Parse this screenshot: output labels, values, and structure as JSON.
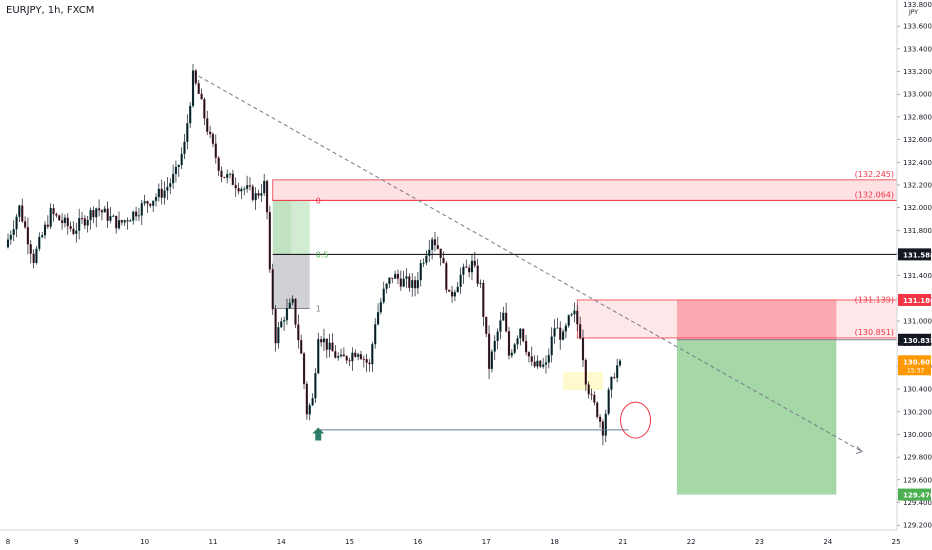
{
  "chart_data": {
    "type": "candlestick",
    "title": "EURJPY, 1h, FXCM",
    "currency": "JPY",
    "y_axis": {
      "min": 129.1,
      "max": 133.85,
      "ticks": [
        133.6,
        133.4,
        133.2,
        133.0,
        132.8,
        132.6,
        132.4,
        132.2,
        132.0,
        131.8,
        131.6,
        131.4,
        131.2,
        131.0,
        130.8,
        130.6,
        130.4,
        130.2,
        130.0,
        129.8,
        129.6,
        129.4,
        129.2
      ],
      "top_label": "133.800",
      "decimals": 3
    },
    "x_axis": {
      "labels": [
        {
          "label": "8",
          "idx": 0
        },
        {
          "label": "9",
          "idx": 24
        },
        {
          "label": "10",
          "idx": 48
        },
        {
          "label": "11",
          "idx": 72
        },
        {
          "label": "14",
          "idx": 96
        },
        {
          "label": "15",
          "idx": 120
        },
        {
          "label": "16",
          "idx": 144
        },
        {
          "label": "17",
          "idx": 168
        },
        {
          "label": "18",
          "idx": 192
        },
        {
          "label": "21",
          "idx": 216
        },
        {
          "label": "22",
          "idx": 240
        },
        {
          "label": "23",
          "idx": 264
        },
        {
          "label": "24",
          "idx": 288
        },
        {
          "label": "25",
          "idx": 312
        }
      ]
    },
    "price_path": [
      [
        0,
        131.65
      ],
      [
        5,
        132.0
      ],
      [
        10,
        131.55
      ],
      [
        16,
        131.95
      ],
      [
        24,
        131.8
      ],
      [
        32,
        132.0
      ],
      [
        40,
        131.85
      ],
      [
        50,
        132.05
      ],
      [
        56,
        132.15
      ],
      [
        60,
        132.3
      ],
      [
        63,
        132.55
      ],
      [
        66,
        133.15
      ],
      [
        68,
        133.0
      ],
      [
        72,
        132.6
      ],
      [
        76,
        132.3
      ],
      [
        82,
        132.2
      ],
      [
        88,
        132.1
      ],
      [
        91,
        132.2
      ],
      [
        92,
        131.95
      ],
      [
        93,
        131.4
      ],
      [
        95,
        130.85
      ],
      [
        98,
        131.05
      ],
      [
        101,
        131.15
      ],
      [
        104,
        130.7
      ],
      [
        106,
        130.2
      ],
      [
        108,
        130.3
      ],
      [
        110,
        130.9
      ],
      [
        114,
        130.75
      ],
      [
        118,
        130.65
      ],
      [
        124,
        130.75
      ],
      [
        128,
        130.6
      ],
      [
        130,
        131.0
      ],
      [
        133,
        131.25
      ],
      [
        136,
        131.4
      ],
      [
        140,
        131.35
      ],
      [
        144,
        131.3
      ],
      [
        146,
        131.5
      ],
      [
        150,
        131.75
      ],
      [
        153,
        131.6
      ],
      [
        156,
        131.2
      ],
      [
        160,
        131.4
      ],
      [
        164,
        131.5
      ],
      [
        167,
        131.3
      ],
      [
        170,
        130.6
      ],
      [
        173,
        130.9
      ],
      [
        175,
        131.05
      ],
      [
        177,
        130.7
      ],
      [
        181,
        130.95
      ],
      [
        185,
        130.6
      ],
      [
        190,
        130.6
      ],
      [
        193,
        130.95
      ],
      [
        196,
        130.85
      ],
      [
        198,
        131.0
      ],
      [
        200,
        131.05
      ],
      [
        202,
        130.9
      ],
      [
        204,
        130.5
      ],
      [
        206,
        130.3
      ],
      [
        208,
        130.2
      ],
      [
        210,
        130.05
      ],
      [
        212,
        130.35
      ],
      [
        214,
        130.55
      ],
      [
        215,
        130.6
      ]
    ],
    "series_len": 216,
    "current": {
      "label": "130.607",
      "sub": "15:37",
      "price": 130.61
    },
    "levels": [
      {
        "label": "132.245",
        "price": 132.245
      },
      {
        "label": "132.064",
        "price": 132.064
      },
      {
        "label": "131.588",
        "price": 131.588
      },
      {
        "label": "131.186",
        "price": 131.186
      },
      {
        "label": "131.139",
        "price": 131.139
      },
      {
        "label": "130.851",
        "price": 130.851
      },
      {
        "label": "130.835",
        "price": 130.835
      },
      {
        "label": "129.470",
        "price": 129.47
      }
    ],
    "supply_zone": {
      "top": 132.245,
      "bottom": 132.064,
      "start_idx": 93
    },
    "fibonacci": {
      "start_idx": 93,
      "end_idx": 106,
      "level_0": 132.064,
      "level_05": 131.588,
      "level_1": 131.11,
      "labels": [
        "0",
        "0.5",
        "1"
      ]
    },
    "resistance_zone": {
      "top": 131.186,
      "bottom": 130.851,
      "start_idx": 200,
      "end_idx": 291
    },
    "trade": {
      "entry": 130.835,
      "stop": 131.186,
      "target": 129.47,
      "start_idx": 235,
      "end_idx": 291
    },
    "trendline": {
      "from_idx": 67,
      "from_price": 133.16,
      "to_idx": 300,
      "to_price": 129.85
    },
    "support_line": {
      "from_idx": 109,
      "to_idx": 218,
      "price": 130.04
    },
    "demand_box": {
      "top": 130.55,
      "bottom": 130.39,
      "start_idx": 195,
      "end_idx": 209
    },
    "marker_up_idx": 109,
    "marker_up_price": 130.0,
    "highlight_circle": {
      "idx": 218,
      "price": 130.1
    }
  }
}
